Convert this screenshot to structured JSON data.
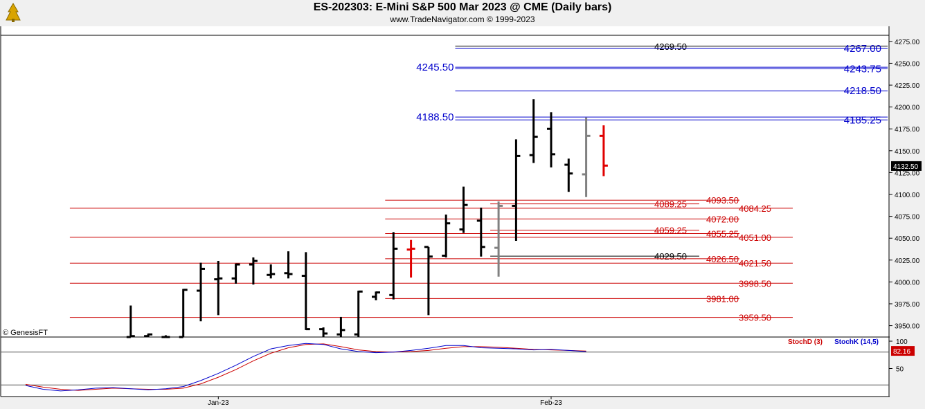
{
  "header": {
    "title": "ES-202303:  E-Mini S&P 500 Mar 2023 @ CME  (Daily bars)",
    "subtitle": "www.TradeNavigator.com © 1999-2023"
  },
  "copyright": "© GenesisFT",
  "chart_data": [
    {
      "type": "ohlc",
      "title": "ES-202303:  E-Mini S&P 500 Mar 2023 @ CME  (Daily bars)",
      "price_axis": {
        "range": [
          3937,
          4282
        ],
        "ticks": [
          3950,
          3975,
          4000,
          4025,
          4050,
          4075,
          4100,
          4125,
          4150,
          4175,
          4200,
          4225,
          4250,
          4275
        ],
        "tick_labels": [
          "3950.00",
          "3975.00",
          "4000.00",
          "4025.00",
          "4050.00",
          "4075.00",
          "4100.00",
          "4125.00",
          "4150.00",
          "4175.00",
          "4200.00",
          "4225.00",
          "4250.00",
          "4275.00"
        ]
      },
      "last_price": "4132.50",
      "time_axis_labels": [
        {
          "label": "Jan-23",
          "bar": 11
        },
        {
          "label": "Feb-23",
          "bar": 30
        }
      ],
      "bars": [
        {
          "i": 6,
          "o": 3930,
          "h": 3973,
          "l": 3925,
          "c": 3938,
          "color": "black"
        },
        {
          "i": 7,
          "o": 3938,
          "h": 3941,
          "l": 3925,
          "c": 3940,
          "color": "black"
        },
        {
          "i": 8,
          "o": 3937,
          "h": 3939,
          "l": 3925,
          "c": 3935,
          "color": "black"
        },
        {
          "i": 9,
          "o": 3937,
          "h": 3992,
          "l": 3937,
          "c": 3991,
          "color": "black"
        },
        {
          "i": 10,
          "o": 3990,
          "h": 4022,
          "l": 3955,
          "c": 4015,
          "color": "black"
        },
        {
          "i": 11,
          "o": 4003,
          "h": 4024,
          "l": 3962,
          "c": 4004,
          "color": "black"
        },
        {
          "i": 12,
          "o": 4004,
          "h": 4021,
          "l": 3998,
          "c": 4020,
          "color": "black"
        },
        {
          "i": 13,
          "o": 4020,
          "h": 4028,
          "l": 3997,
          "c": 4024,
          "color": "black"
        },
        {
          "i": 14,
          "o": 4008,
          "h": 4020,
          "l": 4004,
          "c": 4009,
          "color": "black"
        },
        {
          "i": 15,
          "o": 4010,
          "h": 4035,
          "l": 4004,
          "c": 4009,
          "color": "black"
        },
        {
          "i": 16,
          "o": 4007,
          "h": 4034,
          "l": 3945,
          "c": 3946,
          "color": "black"
        },
        {
          "i": 17,
          "o": 3946,
          "h": 3948,
          "l": 3937,
          "c": 3941,
          "color": "black"
        },
        {
          "i": 18,
          "o": 3940,
          "h": 3960,
          "l": 3937,
          "c": 3945,
          "color": "black"
        },
        {
          "i": 19,
          "o": 3940,
          "h": 3990,
          "l": 3937,
          "c": 3989,
          "color": "black"
        },
        {
          "i": 20,
          "o": 3983,
          "h": 3989,
          "l": 3979,
          "c": 3988,
          "color": "black"
        },
        {
          "i": 21,
          "o": 3985,
          "h": 4057,
          "l": 3980,
          "c": 4038,
          "color": "black"
        },
        {
          "i": 22,
          "o": 4037,
          "h": 4048,
          "l": 4005,
          "c": 4038,
          "color": "red"
        },
        {
          "i": 23,
          "o": 4040,
          "h": 4040,
          "l": 3962,
          "c": 4029,
          "color": "black"
        },
        {
          "i": 24,
          "o": 4030,
          "h": 4077,
          "l": 4028,
          "c": 4067,
          "color": "black"
        },
        {
          "i": 25,
          "o": 4060,
          "h": 4109,
          "l": 4056,
          "c": 4088,
          "color": "black"
        },
        {
          "i": 26,
          "o": 4070,
          "h": 4085,
          "l": 4029,
          "c": 4040,
          "color": "black"
        },
        {
          "i": 27,
          "o": 4039,
          "h": 4092,
          "l": 4006,
          "c": 4087,
          "color": "gray"
        },
        {
          "i": 28,
          "o": 4087,
          "h": 4163,
          "l": 4047,
          "c": 4144,
          "color": "black"
        },
        {
          "i": 29,
          "o": 4145,
          "h": 4209,
          "l": 4136,
          "c": 4166,
          "color": "black"
        },
        {
          "i": 30,
          "o": 4175,
          "h": 4194,
          "l": 4131,
          "c": 4146,
          "color": "black"
        },
        {
          "i": 31,
          "o": 4134,
          "h": 4141,
          "l": 4103,
          "c": 4124,
          "color": "black"
        },
        {
          "i": 32,
          "o": 4123,
          "h": 4188,
          "l": 4097,
          "c": 4167,
          "color": "gray"
        },
        {
          "i": 33,
          "o": 4167,
          "h": 4179,
          "l": 4121,
          "c": 4133,
          "color": "red"
        }
      ],
      "levels": [
        {
          "value": 4269.5,
          "label": "4269.50",
          "color": "#000000",
          "from": 25,
          "to_x": 1282,
          "label_side": "mid"
        },
        {
          "value": 4267.0,
          "label": "4267.00",
          "color": "#0000cc",
          "from": 25,
          "to_x": 1282,
          "label_side": "right"
        },
        {
          "value": 4245.5,
          "label": "4245.50",
          "color": "#0000cc",
          "from": 25,
          "to_x": 1282,
          "label_side": "left"
        },
        {
          "value": 4243.75,
          "label": "4243.75",
          "color": "#0000cc",
          "from": 25,
          "to_x": 1282,
          "label_side": "right"
        },
        {
          "value": 4218.5,
          "label": "4218.50",
          "color": "#0000cc",
          "from": 25,
          "to_x": 1282,
          "label_side": "right"
        },
        {
          "value": 4188.5,
          "label": "4188.50",
          "color": "#0000cc",
          "from": 25,
          "to_x": 1282,
          "label_side": "left"
        },
        {
          "value": 4185.25,
          "label": "4185.25",
          "color": "#0000cc",
          "from": 25,
          "to_x": 1282,
          "label_side": "right"
        },
        {
          "value": 4093.5,
          "label": "4093.50",
          "color": "#cc0000",
          "from": 21,
          "to_x": 1068,
          "label_side": "right"
        },
        {
          "value": 4089.25,
          "label": "4089.25",
          "color": "#cc0000",
          "from": 27,
          "to_x": 1010,
          "label_side": "mid"
        },
        {
          "value": 4084.25,
          "label": "4084.25",
          "color": "#cc0000",
          "from": 3,
          "to_x": 1145,
          "label_side": "right"
        },
        {
          "value": 4072.0,
          "label": "4072.00",
          "color": "#cc0000",
          "from": 21,
          "to_x": 1068,
          "label_side": "right"
        },
        {
          "value": 4059.25,
          "label": "4059.25",
          "color": "#cc0000",
          "from": 27,
          "to_x": 1010,
          "label_side": "mid"
        },
        {
          "value": 4055.25,
          "label": "4055.25",
          "color": "#cc0000",
          "from": 21,
          "to_x": 1068,
          "label_side": "right"
        },
        {
          "value": 4051.0,
          "label": "4051.00",
          "color": "#cc0000",
          "from": 3,
          "to_x": 1145,
          "label_side": "right"
        },
        {
          "value": 4029.5,
          "label": "4029.50",
          "color": "#000000",
          "from": 27,
          "to_x": 1010,
          "label_side": "mid"
        },
        {
          "value": 4026.5,
          "label": "4026.50",
          "color": "#cc0000",
          "from": 21,
          "to_x": 1068,
          "label_side": "right"
        },
        {
          "value": 4021.5,
          "label": "4021.50",
          "color": "#cc0000",
          "from": 3,
          "to_x": 1145,
          "label_side": "right"
        },
        {
          "value": 3998.5,
          "label": "3998.50",
          "color": "#cc0000",
          "from": 3,
          "to_x": 1145,
          "label_side": "right"
        },
        {
          "value": 3981.0,
          "label": "3981.00",
          "color": "#cc0000",
          "from": 21,
          "to_x": 1068,
          "label_side": "right"
        },
        {
          "value": 3959.5,
          "label": "3959.50",
          "color": "#cc0000",
          "from": 3,
          "to_x": 1145,
          "label_side": "right"
        }
      ]
    },
    {
      "type": "line",
      "title": "",
      "indicator_labels": [
        {
          "name": "StochD (3)",
          "color": "#cc0000"
        },
        {
          "name": "StochK (14,5)",
          "color": "#0000cc"
        }
      ],
      "y_ticks": [
        50,
        100
      ],
      "ylim": [
        0,
        100
      ],
      "last_value": "82.16",
      "reference_levels": [
        20,
        80
      ],
      "series": [
        {
          "name": "StochD (3)",
          "color": "#cc0000",
          "values": [
            21,
            16,
            12,
            10,
            12,
            14,
            13,
            12,
            12,
            14,
            22,
            34,
            48,
            64,
            78,
            88,
            94,
            95,
            90,
            84,
            81,
            80,
            81,
            83,
            87,
            90,
            90,
            89,
            87,
            85,
            84,
            83,
            82
          ]
        },
        {
          "name": "StochK (14,5)",
          "color": "#0000cc",
          "values": [
            19,
            12,
            9,
            11,
            14,
            15,
            13,
            11,
            13,
            17,
            28,
            41,
            56,
            72,
            86,
            92,
            96,
            94,
            86,
            81,
            79,
            80,
            83,
            87,
            92,
            92,
            88,
            87,
            86,
            84,
            85,
            83,
            81
          ]
        }
      ]
    }
  ]
}
